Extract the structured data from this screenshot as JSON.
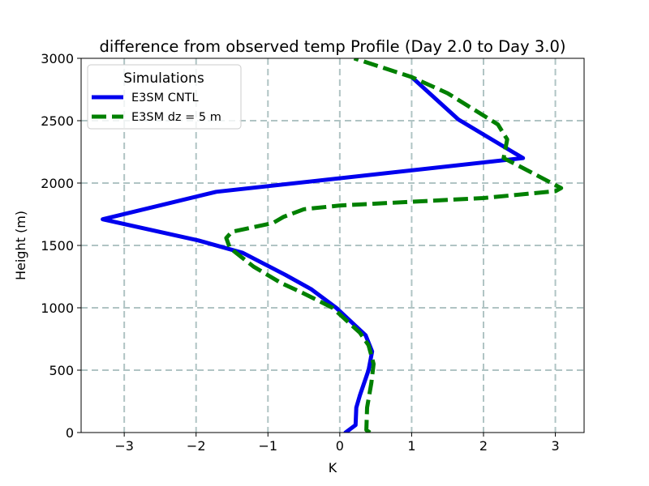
{
  "chart_data": {
    "type": "line",
    "title": "difference from observed temp Profile (Day 2.0 to Day 3.0)",
    "xlabel": "K",
    "ylabel": "Height (m)",
    "xlim": [
      -3.6,
      3.4
    ],
    "ylim": [
      0,
      3000
    ],
    "xticks": [
      -3,
      -2,
      -1,
      0,
      1,
      2,
      3
    ],
    "xtick_labels": [
      "−3",
      "−2",
      "−1",
      "0",
      "1",
      "2",
      "3"
    ],
    "yticks": [
      0,
      500,
      1000,
      1500,
      2000,
      2500,
      3000
    ],
    "ytick_labels": [
      "0",
      "500",
      "1000",
      "1500",
      "2000",
      "2500",
      "3000"
    ],
    "grid": true,
    "legend": {
      "title": "Simulations",
      "placement": "top-left"
    },
    "series": [
      {
        "name": "E3SM CNTL",
        "color": "#0000ee",
        "style": "solid",
        "points": [
          [
            0.08,
            0
          ],
          [
            0.22,
            60
          ],
          [
            0.23,
            200
          ],
          [
            0.28,
            300
          ],
          [
            0.4,
            500
          ],
          [
            0.45,
            650
          ],
          [
            0.36,
            780
          ],
          [
            -0.05,
            1000
          ],
          [
            -0.4,
            1150
          ],
          [
            -0.76,
            1265
          ],
          [
            -1.35,
            1440
          ],
          [
            -1.97,
            1540
          ],
          [
            -3.3,
            1710
          ],
          [
            -1.72,
            1930
          ],
          [
            2.55,
            2200
          ],
          [
            1.65,
            2510
          ],
          [
            1.0,
            2850
          ]
        ]
      },
      {
        "name": "E3SM dz = 5 m",
        "color": "#008000",
        "style": "dashed",
        "points": [
          [
            0.42,
            0
          ],
          [
            0.37,
            20
          ],
          [
            0.38,
            200
          ],
          [
            0.44,
            400
          ],
          [
            0.47,
            550
          ],
          [
            0.4,
            700
          ],
          [
            0.28,
            800
          ],
          [
            -0.1,
            1000
          ],
          [
            -0.52,
            1120
          ],
          [
            -0.82,
            1200
          ],
          [
            -1.2,
            1330
          ],
          [
            -1.53,
            1480
          ],
          [
            -1.58,
            1560
          ],
          [
            -1.5,
            1610
          ],
          [
            -0.93,
            1680
          ],
          [
            -0.78,
            1730
          ],
          [
            -0.5,
            1790
          ],
          [
            0.0,
            1820
          ],
          [
            1.0,
            1850
          ],
          [
            2.0,
            1880
          ],
          [
            3.0,
            1935
          ],
          [
            3.08,
            1960
          ],
          [
            2.98,
            1990
          ],
          [
            2.55,
            2120
          ],
          [
            2.28,
            2200
          ],
          [
            2.33,
            2350
          ],
          [
            2.2,
            2470
          ],
          [
            1.5,
            2720
          ],
          [
            1.0,
            2850
          ],
          [
            0.2,
            3000
          ]
        ]
      }
    ]
  }
}
